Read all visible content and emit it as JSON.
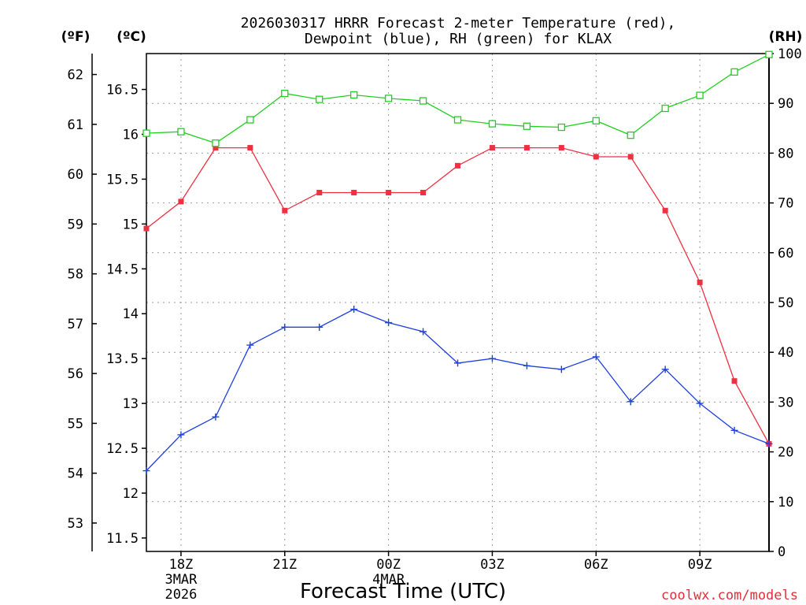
{
  "chart_data": {
    "type": "line",
    "title_lines": [
      "2026030317 HRRR Forecast 2-meter Temperature (red),",
      "Dewpoint (blue), RH (green) for KLAX"
    ],
    "xlabel": "Forecast Time (UTC)",
    "credit": "coolwx.com/models",
    "units": {
      "fahrenheit": "(ºF)",
      "celsius": "(ºC)",
      "rh": "(RH)"
    },
    "x_hours_since_start": [
      0,
      1,
      2,
      3,
      4,
      5,
      6,
      7,
      8,
      9,
      10,
      11,
      12,
      13,
      14,
      15,
      16,
      17,
      18
    ],
    "x_ticks": [
      {
        "hour": 1,
        "lines": [
          "18Z",
          "3MAR",
          "2026"
        ]
      },
      {
        "hour": 4,
        "lines": [
          "21Z"
        ]
      },
      {
        "hour": 7,
        "lines": [
          "00Z",
          "4MAR"
        ]
      },
      {
        "hour": 10,
        "lines": [
          "03Z"
        ]
      },
      {
        "hour": 13,
        "lines": [
          "06Z"
        ]
      },
      {
        "hour": 16,
        "lines": [
          "09Z"
        ]
      }
    ],
    "celsius_axis": {
      "range": [
        11.35,
        16.9
      ],
      "ticks": [
        11.5,
        12,
        12.5,
        13,
        13.5,
        14,
        14.5,
        15,
        15.5,
        16,
        16.5
      ],
      "labels": [
        "11.5",
        "12",
        "12.5",
        "13",
        "13.5",
        "14",
        "14.5",
        "15",
        "15.5",
        "16",
        "16.5"
      ]
    },
    "fahrenheit_ticks": {
      "values": [
        53,
        54,
        55,
        56,
        57,
        58,
        59,
        60,
        61,
        62
      ],
      "labels": [
        "53",
        "54",
        "55",
        "56",
        "57",
        "58",
        "59",
        "60",
        "61",
        "62"
      ]
    },
    "rh_axis": {
      "range": [
        0,
        100
      ],
      "ticks": [
        0,
        10,
        20,
        30,
        40,
        50,
        60,
        70,
        80,
        90,
        100
      ],
      "labels": [
        "0",
        "10",
        "20",
        "30",
        "40",
        "50",
        "60",
        "70",
        "80",
        "90",
        "100"
      ]
    },
    "series": [
      {
        "name": "Temperature",
        "axis": "celsius",
        "color": "#ee3040",
        "marker": "filled-square",
        "values": [
          14.95,
          15.25,
          15.85,
          15.85,
          15.15,
          15.35,
          15.35,
          15.35,
          15.35,
          15.65,
          15.85,
          15.85,
          15.85,
          15.75,
          15.75,
          15.15,
          14.35,
          13.25,
          12.55
        ]
      },
      {
        "name": "Dewpoint",
        "axis": "celsius",
        "color": "#2040e0",
        "marker": "plus",
        "values": [
          12.25,
          12.65,
          12.85,
          13.65,
          13.85,
          13.85,
          14.05,
          13.9,
          13.8,
          13.45,
          13.5,
          13.42,
          13.38,
          13.52,
          13.02,
          13.38,
          13.0,
          12.7,
          12.55
        ]
      },
      {
        "name": "RH",
        "axis": "rh",
        "color": "#20d020",
        "marker": "open-square",
        "values": [
          84,
          84.3,
          82,
          86.7,
          92,
          90.8,
          91.7,
          91,
          90.5,
          86.7,
          85.9,
          85.4,
          85.2,
          86.5,
          83.6,
          89,
          91.6,
          96.3,
          99.8
        ]
      }
    ]
  }
}
